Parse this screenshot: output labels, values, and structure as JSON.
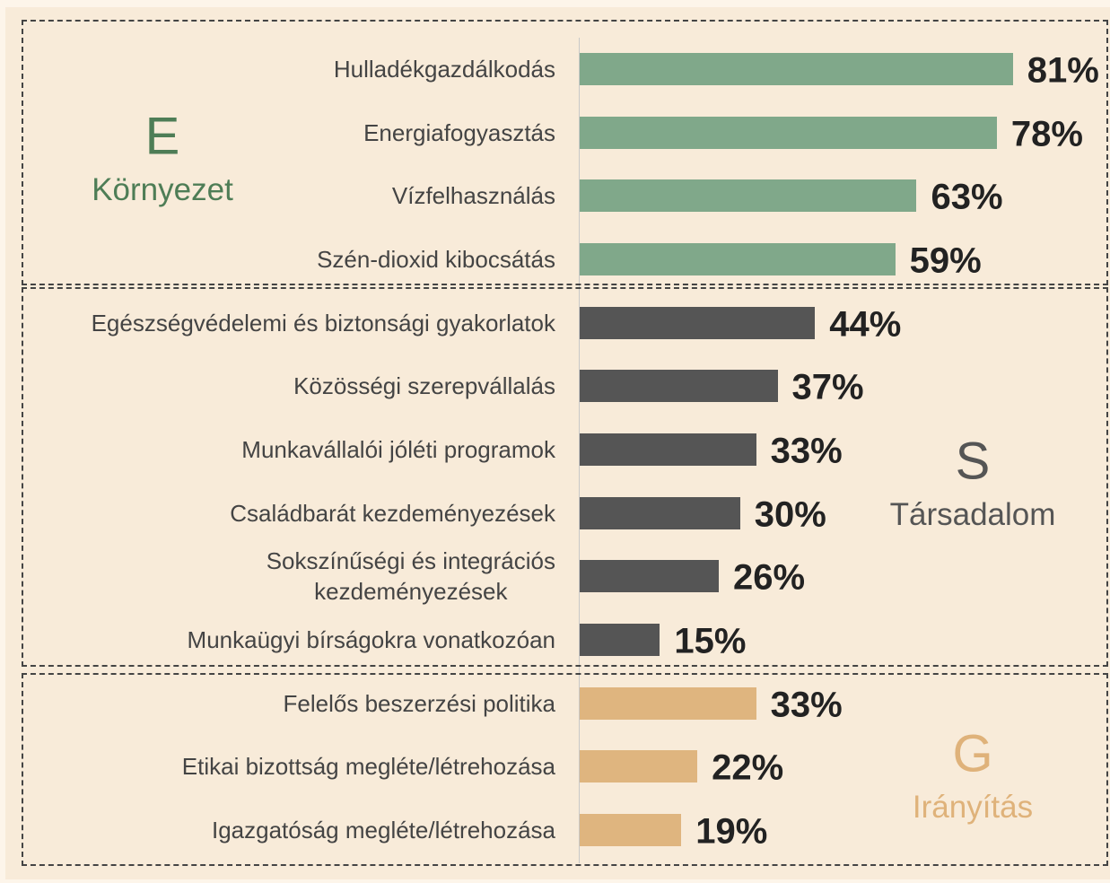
{
  "chart_data": {
    "type": "bar",
    "xlim": [
      0,
      100
    ],
    "groups": [
      {
        "letter": "E",
        "name": "Környezet",
        "color": "#80a88a",
        "text_color": "#4e7d56",
        "categories": [
          "Hulladékgazdálkodás",
          "Energiafogyasztás",
          "Vízfelhasználás",
          "Szén-dioxid kibocsátás"
        ],
        "values": [
          81,
          78,
          63,
          59
        ],
        "value_labels": [
          "81%",
          "78%",
          "63%",
          "59%"
        ]
      },
      {
        "letter": "S",
        "name": "Társadalom",
        "color": "#555555",
        "text_color": "#555555",
        "categories": [
          "Egészségvédelemi és biztonsági gyakorlatok",
          "Közösségi szerepvállalás",
          "Munkavállalói jóléti programok",
          "Családbarát kezdeményezések",
          "Sokszínűségi és integrációs\nkezdeményezések",
          "Munkaügyi bírságokra vonatkozóan"
        ],
        "values": [
          44,
          37,
          33,
          30,
          26,
          15
        ],
        "value_labels": [
          "44%",
          "37%",
          "33%",
          "30%",
          "26%",
          "15%"
        ]
      },
      {
        "letter": "G",
        "name": "Irányítás",
        "color": "#dfb57f",
        "text_color": "#dfb27a",
        "categories": [
          "Felelős beszerzési politika",
          "Etikai bizottság megléte/létrehozása",
          "Igazgatóság megléte/létrehozása"
        ],
        "values": [
          33,
          22,
          19
        ],
        "value_labels": [
          "33%",
          "22%",
          "19%"
        ]
      }
    ]
  }
}
